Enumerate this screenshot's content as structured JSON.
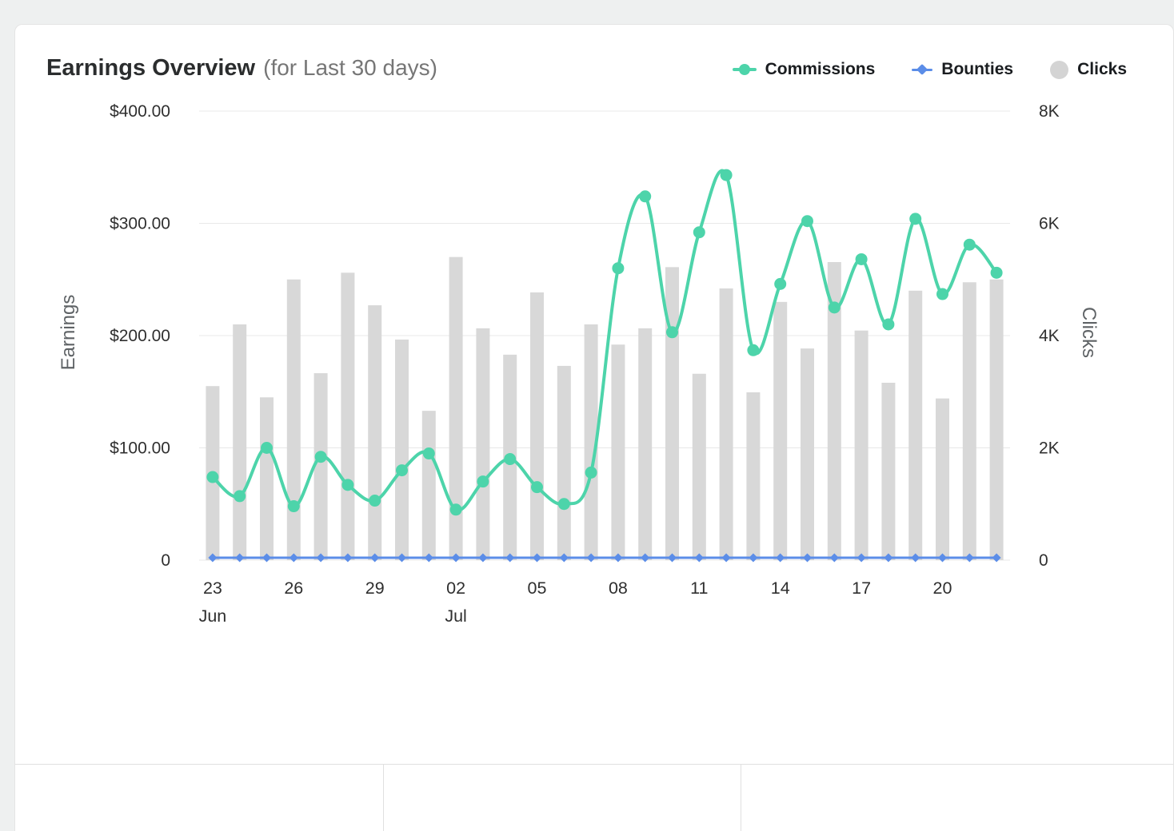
{
  "header": {
    "title": "Earnings Overview",
    "subtitle": "(for Last 30 days)"
  },
  "legend": [
    {
      "label": "Commissions",
      "color": "#4DD4AA",
      "marker": "line-dot"
    },
    {
      "label": "Bounties",
      "color": "#5B8DE8",
      "marker": "line-diamond"
    },
    {
      "label": "Clicks",
      "color": "#D6D6D6",
      "marker": "big-circle"
    }
  ],
  "chart_data": {
    "type": "combo",
    "title": "Earnings Overview (for Last 30 days)",
    "x": [
      "Jun 23",
      "Jun 24",
      "Jun 25",
      "Jun 26",
      "Jun 27",
      "Jun 28",
      "Jun 29",
      "Jun 30",
      "Jul 01",
      "Jul 02",
      "Jul 03",
      "Jul 04",
      "Jul 05",
      "Jul 06",
      "Jul 07",
      "Jul 08",
      "Jul 09",
      "Jul 10",
      "Jul 11",
      "Jul 12",
      "Jul 13",
      "Jul 14",
      "Jul 15",
      "Jul 16",
      "Jul 17",
      "Jul 18",
      "Jul 19",
      "Jul 20",
      "Jul 21",
      "Jul 22"
    ],
    "series": [
      {
        "name": "Commissions",
        "kind": "line",
        "axis": "left",
        "color": "#4DD4AA",
        "values": [
          74,
          57,
          100,
          48,
          92,
          67,
          53,
          80,
          95,
          45,
          70,
          90,
          65,
          50,
          78,
          260,
          324,
          203,
          292,
          343,
          187,
          246,
          302,
          225,
          268,
          210,
          304,
          237,
          281,
          256
        ]
      },
      {
        "name": "Bounties",
        "kind": "line",
        "axis": "left",
        "color": "#5B8DE8",
        "values": [
          0,
          0,
          0,
          0,
          0,
          0,
          0,
          0,
          0,
          0,
          0,
          0,
          0,
          0,
          0,
          0,
          0,
          0,
          0,
          0,
          0,
          0,
          0,
          0,
          0,
          0,
          0,
          0,
          0,
          0
        ]
      },
      {
        "name": "Clicks",
        "kind": "bar",
        "axis": "right",
        "color": "#D8D8D8",
        "values": [
          3100,
          4200,
          2900,
          5000,
          3330,
          5120,
          4540,
          3930,
          2660,
          5400,
          4130,
          3660,
          4770,
          3460,
          4200,
          3840,
          4130,
          5220,
          3320,
          4840,
          2990,
          4600,
          3770,
          5310,
          4090,
          3160,
          4800,
          2880,
          4950,
          5000
        ]
      }
    ],
    "left_axis": {
      "title": "Earnings",
      "min": 0,
      "max": 400,
      "ticks": [
        {
          "label": "$400.00",
          "value": 400
        },
        {
          "label": "$300.00",
          "value": 300
        },
        {
          "label": "$200.00",
          "value": 200
        },
        {
          "label": "$100.00",
          "value": 100
        },
        {
          "label": "0",
          "value": 0
        }
      ]
    },
    "right_axis": {
      "title": "Clicks",
      "min": 0,
      "max": 8000,
      "ticks": [
        {
          "label": "8K",
          "value": 8000
        },
        {
          "label": "6K",
          "value": 6000
        },
        {
          "label": "4K",
          "value": 4000
        },
        {
          "label": "2K",
          "value": 2000
        },
        {
          "label": "0",
          "value": 0
        }
      ]
    },
    "x_axis": {
      "tick_labels": [
        {
          "label": "23",
          "index": 0
        },
        {
          "label": "26",
          "index": 3
        },
        {
          "label": "29",
          "index": 6
        },
        {
          "label": "02",
          "index": 9
        },
        {
          "label": "05",
          "index": 12
        },
        {
          "label": "08",
          "index": 15
        },
        {
          "label": "11",
          "index": 18
        },
        {
          "label": "14",
          "index": 21
        },
        {
          "label": "17",
          "index": 24
        },
        {
          "label": "20",
          "index": 27
        }
      ],
      "month_labels": [
        {
          "label": "Jun",
          "index": 0
        },
        {
          "label": "Jul",
          "index": 9
        }
      ]
    },
    "grid": true,
    "legend_position": "top-right"
  }
}
